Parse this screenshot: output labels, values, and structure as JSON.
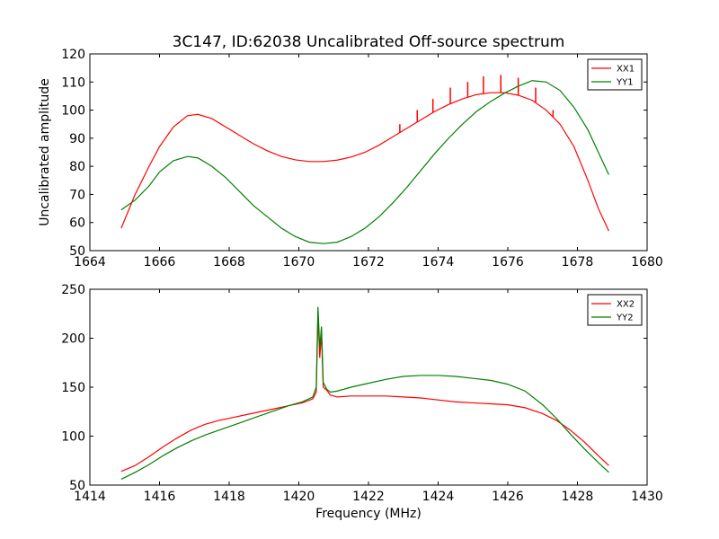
{
  "window": {
    "title": ""
  },
  "chart_data": [
    {
      "type": "line",
      "title": "3C147, ID:62038 Uncalibrated Off-source spectrum",
      "xlabel": "",
      "ylabel": "Uncalibrated amplitude",
      "xlim": [
        1664,
        1680
      ],
      "ylim": [
        50,
        120
      ],
      "xticks": [
        1664,
        1666,
        1668,
        1670,
        1672,
        1674,
        1676,
        1678,
        1680
      ],
      "xtick_labels": [
        "1664",
        "1666",
        "1668",
        "1670",
        "1672",
        "1674",
        "1676",
        "1678",
        "1680"
      ],
      "yticks": [
        50,
        60,
        70,
        80,
        90,
        100,
        110,
        120
      ],
      "ytick_labels": [
        "50",
        "60",
        "70",
        "80",
        "90",
        "100",
        "110",
        "120"
      ],
      "legend": {
        "position": "top-right",
        "entries": [
          "XX1",
          "YY1"
        ]
      },
      "series": [
        {
          "name": "XX1",
          "color": "#ff0000",
          "x": [
            1664.9,
            1665.3,
            1665.7,
            1666.0,
            1666.4,
            1666.8,
            1667.1,
            1667.5,
            1667.9,
            1668.3,
            1668.7,
            1669.1,
            1669.5,
            1669.9,
            1670.3,
            1670.7,
            1671.1,
            1671.5,
            1671.9,
            1672.3,
            1672.7,
            1673.1,
            1673.5,
            1673.9,
            1674.3,
            1674.7,
            1675.1,
            1675.5,
            1675.9,
            1676.3,
            1676.7,
            1677.1,
            1677.5,
            1677.9,
            1678.3,
            1678.6,
            1678.9
          ],
          "y": [
            58,
            70,
            80,
            87,
            94,
            98,
            98.5,
            97,
            94,
            91,
            88,
            85.5,
            83.5,
            82.3,
            81.7,
            81.7,
            82.2,
            83.3,
            85,
            87.5,
            90.5,
            93.5,
            96.5,
            99.5,
            102,
            104,
            105.5,
            106.2,
            106.2,
            105.3,
            103.5,
            100,
            95,
            87,
            75,
            65,
            57
          ],
          "spikes": [
            {
              "x": 1672.9,
              "y": 95
            },
            {
              "x": 1673.4,
              "y": 100
            },
            {
              "x": 1673.85,
              "y": 104
            },
            {
              "x": 1674.35,
              "y": 108
            },
            {
              "x": 1674.85,
              "y": 110
            },
            {
              "x": 1675.3,
              "y": 112
            },
            {
              "x": 1675.8,
              "y": 112.5
            },
            {
              "x": 1676.3,
              "y": 111.5
            },
            {
              "x": 1676.8,
              "y": 108
            },
            {
              "x": 1677.3,
              "y": 100
            }
          ]
        },
        {
          "name": "YY1",
          "color": "#008000",
          "x": [
            1664.9,
            1665.3,
            1665.7,
            1666.0,
            1666.4,
            1666.8,
            1667.1,
            1667.5,
            1667.9,
            1668.3,
            1668.7,
            1669.1,
            1669.5,
            1669.9,
            1670.3,
            1670.7,
            1671.1,
            1671.5,
            1671.9,
            1672.3,
            1672.7,
            1673.1,
            1673.5,
            1673.9,
            1674.3,
            1674.7,
            1675.1,
            1675.5,
            1675.9,
            1676.3,
            1676.7,
            1677.1,
            1677.5,
            1677.9,
            1678.3,
            1678.6,
            1678.9
          ],
          "y": [
            64.5,
            68,
            73,
            78,
            82,
            83.5,
            83,
            80,
            76,
            71,
            66,
            62,
            58,
            55,
            53,
            52.5,
            53,
            55,
            58,
            62,
            67,
            72.5,
            78.5,
            84.5,
            90,
            95,
            99.5,
            103,
            106,
            108.5,
            110.5,
            110,
            107,
            101,
            93,
            85,
            77
          ]
        }
      ]
    },
    {
      "type": "line",
      "title": "",
      "xlabel": "Frequency (MHz)",
      "ylabel": "",
      "xlim": [
        1414,
        1430
      ],
      "ylim": [
        50,
        250
      ],
      "xticks": [
        1414,
        1416,
        1418,
        1420,
        1422,
        1424,
        1426,
        1428,
        1430
      ],
      "xtick_labels": [
        "1414",
        "1416",
        "1418",
        "1420",
        "1422",
        "1424",
        "1426",
        "1428",
        "1430"
      ],
      "yticks": [
        50,
        100,
        150,
        200,
        250
      ],
      "ytick_labels": [
        "50",
        "100",
        "150",
        "200",
        "250"
      ],
      "legend": {
        "position": "top-right",
        "entries": [
          "XX2",
          "YY2"
        ]
      },
      "series": [
        {
          "name": "XX2",
          "color": "#ff0000",
          "x": [
            1414.9,
            1415.3,
            1415.7,
            1416.1,
            1416.5,
            1416.9,
            1417.3,
            1417.7,
            1418.1,
            1418.5,
            1418.9,
            1419.3,
            1419.7,
            1420.1,
            1420.4,
            1420.5,
            1420.55,
            1420.6,
            1420.65,
            1420.7,
            1420.8,
            1420.9,
            1421.1,
            1421.5,
            1422.0,
            1422.5,
            1423.0,
            1423.5,
            1424.0,
            1424.5,
            1425.0,
            1425.5,
            1426.0,
            1426.5,
            1427.0,
            1427.4,
            1427.8,
            1428.2,
            1428.6,
            1428.9
          ],
          "y": [
            64,
            70,
            79,
            89,
            98,
            106,
            112,
            116,
            119,
            122,
            125,
            128,
            131,
            134,
            138,
            145,
            225,
            180,
            205,
            150,
            147,
            142,
            140,
            141,
            141,
            141,
            140,
            139,
            137,
            135,
            134,
            133,
            132,
            129,
            123,
            116,
            106,
            94,
            80,
            70
          ]
        },
        {
          "name": "YY2",
          "color": "#008000",
          "x": [
            1414.9,
            1415.3,
            1415.7,
            1416.1,
            1416.5,
            1416.9,
            1417.3,
            1417.7,
            1418.1,
            1418.5,
            1418.9,
            1419.3,
            1419.7,
            1420.1,
            1420.4,
            1420.5,
            1420.55,
            1420.6,
            1420.65,
            1420.7,
            1420.8,
            1420.9,
            1421.1,
            1421.5,
            1422.0,
            1422.5,
            1423.0,
            1423.5,
            1424.0,
            1424.5,
            1425.0,
            1425.5,
            1426.0,
            1426.5,
            1427.0,
            1427.4,
            1427.8,
            1428.2,
            1428.6,
            1428.9
          ],
          "y": [
            56,
            63,
            71,
            80,
            88,
            95,
            101,
            106,
            111,
            116,
            121,
            126,
            131,
            135,
            140,
            150,
            232,
            190,
            212,
            155,
            148,
            145,
            146,
            150,
            154,
            158,
            161,
            162,
            162,
            161,
            159,
            157,
            153,
            146,
            132,
            118,
            102,
            87,
            73,
            63
          ]
        }
      ]
    }
  ]
}
